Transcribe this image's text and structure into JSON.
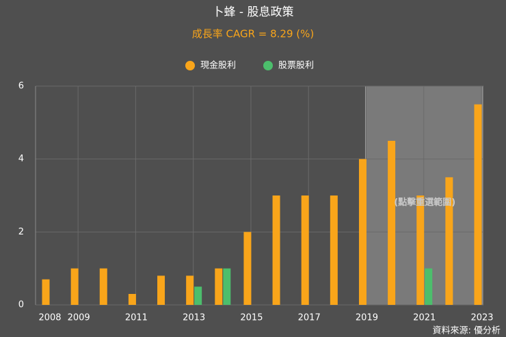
{
  "chart_data": {
    "type": "bar",
    "title": "卜蜂 - 股息政策",
    "subtitle": "成長率 CAGR = 8.29 (%)",
    "categories": [
      "2008",
      "2009",
      null,
      "2011",
      null,
      "2013",
      null,
      "2015",
      null,
      "2017",
      null,
      "2019",
      null,
      "2021",
      null,
      "2023"
    ],
    "series": [
      {
        "name": "現金股利",
        "color": "#f9a51a",
        "values": [
          0.7,
          1,
          1,
          0.3,
          0.8,
          0.8,
          1,
          2,
          3,
          3,
          3,
          4,
          4.5,
          3,
          3.5,
          5.5
        ]
      },
      {
        "name": "股票股利",
        "color": "#4cbe6c",
        "values": [
          0,
          0,
          0,
          0,
          0,
          0.5,
          1,
          0,
          0,
          0,
          0,
          0,
          0,
          1,
          0,
          0
        ]
      }
    ],
    "ylim": [
      0,
      6
    ],
    "yticks": [
      0,
      2,
      4,
      6
    ],
    "grid": true,
    "legend": "top",
    "highlight_label": "(點擊重選範圍)",
    "source": "資料來源: 優分析"
  }
}
